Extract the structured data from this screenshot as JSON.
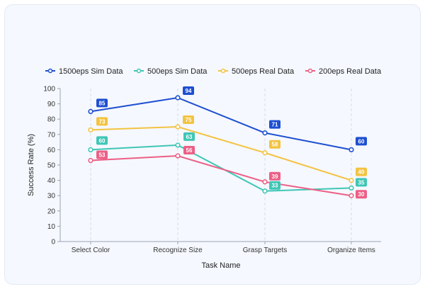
{
  "chart_data": {
    "type": "line",
    "xlabel": "Task Name",
    "ylabel": "Success Rate (%)",
    "ylim": [
      0,
      100
    ],
    "yticks": [
      0,
      10,
      20,
      30,
      40,
      50,
      60,
      70,
      80,
      90,
      100
    ],
    "categories": [
      "Select Color",
      "Recognize Size",
      "Grasp Targets",
      "Organize Items"
    ],
    "grid": "vertical dashed",
    "legend_position": "top",
    "series": [
      {
        "name": "1500eps Sim Data",
        "color": "#1e4fd1",
        "values": [
          85,
          94,
          71,
          60
        ]
      },
      {
        "name": "500eps Sim Data",
        "color": "#3fc6b6",
        "values": [
          60,
          63,
          33,
          35
        ]
      },
      {
        "name": "500eps Real Data",
        "color": "#f3c341",
        "values": [
          73,
          75,
          58,
          40
        ]
      },
      {
        "name": "200eps Real Data",
        "color": "#ec5f86",
        "values": [
          53,
          56,
          39,
          30
        ]
      }
    ]
  }
}
